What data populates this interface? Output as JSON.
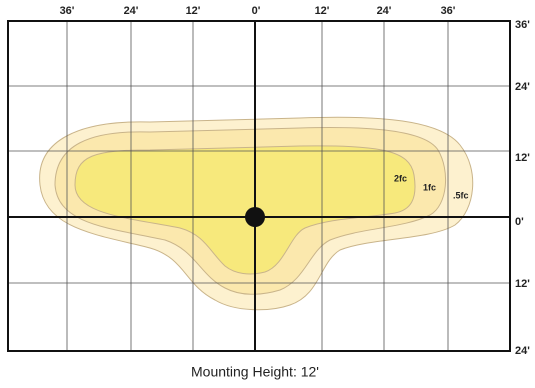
{
  "top_labels": [
    "36'",
    "24'",
    "12'",
    "0'",
    "12'",
    "24'",
    "36'"
  ],
  "right_labels": [
    "36'",
    "24'",
    "12'",
    "0'",
    "12'",
    "24'"
  ],
  "contours": [
    {
      "label": "2fc"
    },
    {
      "label": "1fc"
    },
    {
      "label": ".5fc"
    }
  ],
  "caption": "Mounting Height: 12'"
}
